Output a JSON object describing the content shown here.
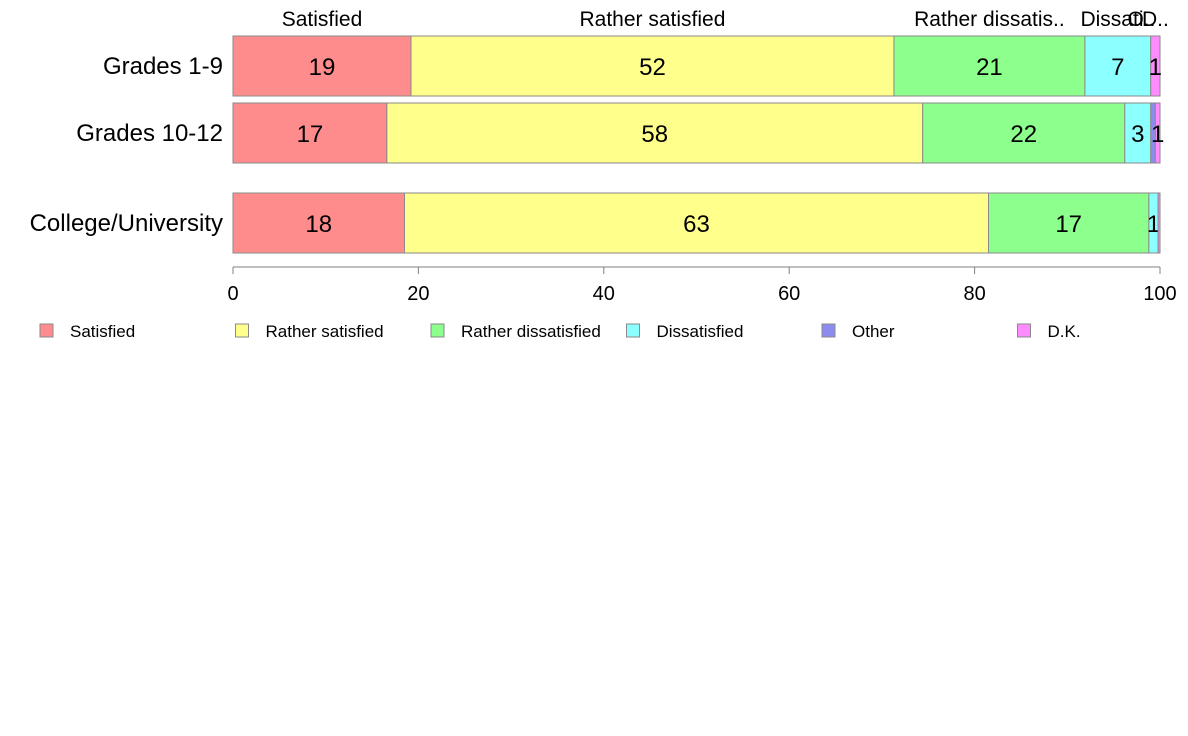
{
  "chart_data": {
    "type": "bar",
    "orientation": "horizontal",
    "stacked": true,
    "title": "",
    "xlabel": "",
    "ylabel": "",
    "xlim": [
      0,
      100
    ],
    "x_ticks": [
      "0",
      "20",
      "40",
      "60",
      "80",
      "100"
    ],
    "categories": [
      "Grades 1-9",
      "Grades 10-12",
      "College/University"
    ],
    "series": [
      {
        "name": "Satisfied",
        "short_label": "Satisfied",
        "color": "#ff8c8c",
        "values": [
          19.2,
          16.6,
          18.5
        ],
        "labels": [
          "19",
          "17",
          "18"
        ]
      },
      {
        "name": "Rather satisfied",
        "short_label": "Rather satisfied",
        "color": "#ffff8c",
        "values": [
          52.1,
          57.8,
          63.0
        ],
        "labels": [
          "52",
          "58",
          "63"
        ]
      },
      {
        "name": "Rather dissatisfied",
        "short_label": "Rather dissatis..",
        "color": "#8cff8c",
        "values": [
          20.6,
          21.8,
          17.3
        ],
        "labels": [
          "21",
          "22",
          "17"
        ]
      },
      {
        "name": "Dissatisfied",
        "short_label": "Dissati..",
        "color": "#8cffff",
        "values": [
          7.1,
          2.8,
          1.0
        ],
        "labels": [
          "7",
          "3",
          "1"
        ]
      },
      {
        "name": "Other",
        "short_label": "O..",
        "color": "#8c8cf0",
        "values": [
          0.0,
          0.5,
          0.0
        ],
        "labels": [
          "",
          "",
          ""
        ]
      },
      {
        "name": "D.K.",
        "short_label": "D..",
        "color": "#ff8cff",
        "values": [
          1.0,
          0.5,
          0.2
        ],
        "labels": [
          "1",
          "1",
          ""
        ]
      }
    ],
    "legend_position": "bottom",
    "grid": false
  }
}
